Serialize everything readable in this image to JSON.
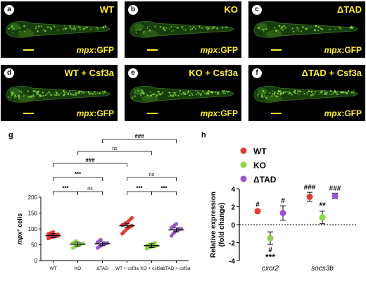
{
  "panels": [
    {
      "letter": "a",
      "genotype": "WT",
      "reporter_gene": "mpx",
      "reporter_suffix": ":GFP"
    },
    {
      "letter": "b",
      "genotype": "KO",
      "reporter_gene": "mpx",
      "reporter_suffix": ":GFP"
    },
    {
      "letter": "c",
      "genotype": "ΔTAD",
      "reporter_gene": "mpx",
      "reporter_suffix": ":GFP"
    },
    {
      "letter": "d",
      "genotype": "WT + Csf3a",
      "reporter_gene": "mpx",
      "reporter_suffix": ":GFP"
    },
    {
      "letter": "e",
      "genotype": "KO + Csf3a",
      "reporter_gene": "mpx",
      "reporter_suffix": ":GFP"
    },
    {
      "letter": "f",
      "genotype": "ΔTAD + Csf3a",
      "reporter_gene": "mpx",
      "reporter_suffix": ":GFP"
    }
  ],
  "colors": {
    "panel_bg": "#000000",
    "gfp": "#7fd633",
    "label_yellow": "#ffee33",
    "wt": "#e03a3a",
    "ko": "#8fd44a",
    "dtad": "#9b55cc"
  },
  "chart_data": [
    {
      "panel": "g",
      "type": "scatter",
      "ylabel_main": "mpx",
      "ylabel_sup": "+",
      "ylabel_rest": " cells",
      "ylim": [
        0,
        200
      ],
      "yticks": [
        "0",
        "50",
        "100",
        "150",
        "200"
      ],
      "categories": [
        "WT",
        "KO",
        "ΔTAD",
        "WT + csf3a",
        "KO + csf3a",
        "ΔTAD + csf3a"
      ],
      "means": [
        79,
        52,
        53,
        110,
        47,
        97
      ],
      "point_colors": [
        "#e03a3a",
        "#8fd44a",
        "#9b55cc",
        "#e03a3a",
        "#8fd44a",
        "#9b55cc"
      ],
      "points": [
        [
          70,
          72,
          74,
          75,
          76,
          77,
          78,
          78,
          79,
          80,
          80,
          81,
          82,
          83,
          84,
          86,
          88,
          90
        ],
        [
          40,
          43,
          46,
          48,
          50,
          52,
          54,
          56,
          58,
          62
        ],
        [
          40,
          44,
          47,
          50,
          52,
          54,
          56,
          58,
          62,
          66
        ],
        [
          85,
          90,
          95,
          100,
          104,
          107,
          110,
          112,
          115,
          118,
          120,
          125,
          130,
          135
        ],
        [
          38,
          40,
          42,
          44,
          45,
          46,
          47,
          48,
          49,
          50,
          52,
          54,
          56
        ],
        [
          78,
          85,
          90,
          94,
          97,
          99,
          101,
          104,
          107,
          112,
          116
        ]
      ],
      "brackets": [
        {
          "from": 0,
          "to": 1,
          "label": "***",
          "level": 0
        },
        {
          "from": 1,
          "to": 2,
          "label": "ns",
          "level": 0
        },
        {
          "from": 3,
          "to": 4,
          "label": "***",
          "level": 0
        },
        {
          "from": 4,
          "to": 5,
          "label": "***",
          "level": 0
        },
        {
          "from": 0,
          "to": 2,
          "label": "***",
          "level": 1
        },
        {
          "from": 3,
          "to": 5,
          "label": "ns",
          "level": 1
        },
        {
          "from": 0,
          "to": 3,
          "label": "###",
          "level": 2
        },
        {
          "from": 1,
          "to": 4,
          "label": "ns",
          "level": 3
        },
        {
          "from": 2,
          "to": 5,
          "label": "###",
          "level": 4
        }
      ]
    },
    {
      "panel": "h",
      "type": "scatter",
      "ylabel_line1": "Relative expression",
      "ylabel_line2": "(fold change)",
      "ylim": [
        -4,
        4
      ],
      "yticks": [
        "-4",
        "-2",
        "0",
        "2",
        "4"
      ],
      "categories": [
        "cxcr2",
        "socs3b"
      ],
      "legend": [
        {
          "name": "WT",
          "color": "#e03a3a"
        },
        {
          "name": "KO",
          "color": "#8fd44a"
        },
        {
          "name": "ΔTAD",
          "color": "#9b55cc"
        }
      ],
      "series": [
        {
          "name": "WT",
          "color": "#e03a3a",
          "values": [
            1.5,
            3.1
          ],
          "errors": [
            0.2,
            0.5
          ]
        },
        {
          "name": "KO",
          "color": "#8fd44a",
          "values": [
            -1.5,
            0.8
          ],
          "errors": [
            0.7,
            0.7
          ]
        },
        {
          "name": "ΔTAD",
          "color": "#9b55cc",
          "values": [
            1.3,
            3.2
          ],
          "errors": [
            0.8,
            0.3
          ]
        }
      ],
      "annotations": [
        {
          "group": 0,
          "series": 0,
          "label": "#",
          "where": "above"
        },
        {
          "group": 0,
          "series": 1,
          "label": "#",
          "where": "below"
        },
        {
          "group": 0,
          "series": 1,
          "label": "***",
          "where": "below2"
        },
        {
          "group": 0,
          "series": 2,
          "label": "#",
          "where": "above"
        },
        {
          "group": 1,
          "series": 0,
          "label": "###",
          "where": "above"
        },
        {
          "group": 1,
          "series": 1,
          "label": "**",
          "where": "above"
        },
        {
          "group": 1,
          "series": 2,
          "label": "###",
          "where": "above"
        }
      ]
    }
  ]
}
